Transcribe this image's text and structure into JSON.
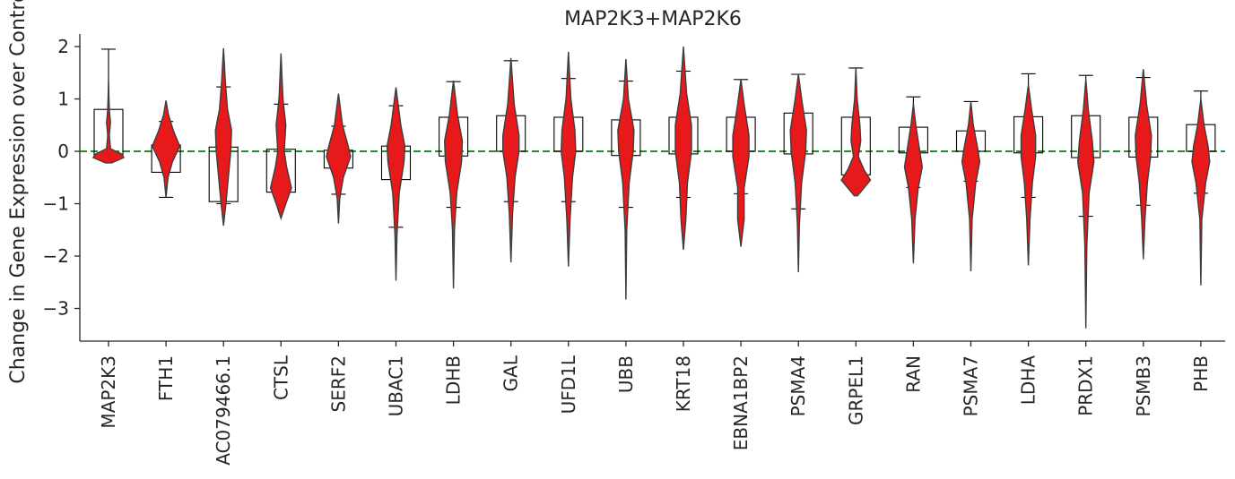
{
  "chart_data": {
    "type": "violin",
    "title": "MAP2K3+MAP2K6",
    "xlabel": "",
    "ylabel": "Change in Gene Expression over Control",
    "ylim": [
      -3.65,
      2.3
    ],
    "yticks": [
      2,
      1,
      0,
      -1,
      -2,
      -3
    ],
    "reference_line": {
      "y": 0,
      "style": "dashed",
      "color": "#008000"
    },
    "colors": {
      "violin": "#e8191b",
      "box": "#000000",
      "axis": "#262626"
    },
    "grid": false,
    "legend": "none",
    "categories": [
      "MAP2K3",
      "FTH1",
      "AC079466.1",
      "CTSL",
      "SERF2",
      "UBAC1",
      "LDHB",
      "GAL",
      "UFD1L",
      "UBB",
      "KRT18",
      "EBNA1BP2",
      "PSMA4",
      "GRPEL1",
      "RAN",
      "PSMA7",
      "LDHA",
      "PRDX1",
      "PSMB3",
      "PHB"
    ],
    "boxes": [
      {
        "q1": -0.07,
        "q3": 0.8,
        "lo": -0.1,
        "hi": 1.95
      },
      {
        "q1": -0.4,
        "q3": 0.12,
        "lo": -0.88,
        "hi": 0.57
      },
      {
        "q1": -0.96,
        "q3": 0.08,
        "lo": -1.0,
        "hi": 1.23
      },
      {
        "q1": -0.78,
        "q3": 0.04,
        "lo": -0.8,
        "hi": 0.9
      },
      {
        "q1": -0.32,
        "q3": 0.02,
        "lo": -0.82,
        "hi": 0.48
      },
      {
        "q1": -0.54,
        "q3": 0.1,
        "lo": -1.45,
        "hi": 0.87
      },
      {
        "q1": -0.09,
        "q3": 0.65,
        "lo": -1.07,
        "hi": 1.33
      },
      {
        "q1": 0.0,
        "q3": 0.68,
        "lo": -0.96,
        "hi": 1.73
      },
      {
        "q1": 0.0,
        "q3": 0.65,
        "lo": -0.96,
        "hi": 1.39
      },
      {
        "q1": -0.08,
        "q3": 0.6,
        "lo": -1.07,
        "hi": 1.34
      },
      {
        "q1": -0.05,
        "q3": 0.65,
        "lo": -0.88,
        "hi": 1.53
      },
      {
        "q1": 0.0,
        "q3": 0.65,
        "lo": -0.81,
        "hi": 1.37
      },
      {
        "q1": -0.05,
        "q3": 0.73,
        "lo": -1.1,
        "hi": 1.47
      },
      {
        "q1": -0.45,
        "q3": 0.65,
        "lo": -0.46,
        "hi": 1.59
      },
      {
        "q1": -0.03,
        "q3": 0.46,
        "lo": -0.69,
        "hi": 1.04
      },
      {
        "q1": 0.0,
        "q3": 0.39,
        "lo": -0.57,
        "hi": 0.95
      },
      {
        "q1": -0.03,
        "q3": 0.66,
        "lo": -0.88,
        "hi": 1.48
      },
      {
        "q1": -0.12,
        "q3": 0.68,
        "lo": -1.24,
        "hi": 1.45
      },
      {
        "q1": -0.11,
        "q3": 0.65,
        "lo": -1.03,
        "hi": 1.41
      },
      {
        "q1": 0.0,
        "q3": 0.51,
        "lo": -0.8,
        "hi": 1.15
      }
    ],
    "violins": [
      {
        "min": -0.22,
        "max": 1.38,
        "profile": [
          [
            -0.22,
            0.2
          ],
          [
            -0.12,
            0.95
          ],
          [
            -0.05,
            0.8
          ],
          [
            0.05,
            0.12
          ],
          [
            0.3,
            0.05
          ],
          [
            0.55,
            0.12
          ],
          [
            0.75,
            0.06
          ],
          [
            1.0,
            0.03
          ],
          [
            1.38,
            0
          ]
        ]
      },
      {
        "min": -0.88,
        "max": 0.97,
        "profile": [
          [
            -0.88,
            0
          ],
          [
            -0.5,
            0.12
          ],
          [
            -0.2,
            0.4
          ],
          [
            0.1,
            0.85
          ],
          [
            0.4,
            0.45
          ],
          [
            0.7,
            0.15
          ],
          [
            0.97,
            0
          ]
        ]
      },
      {
        "min": -1.42,
        "max": 1.97,
        "profile": [
          [
            -1.42,
            0
          ],
          [
            -1.0,
            0.15
          ],
          [
            -0.5,
            0.3
          ],
          [
            0.0,
            0.45
          ],
          [
            0.4,
            0.5
          ],
          [
            0.8,
            0.25
          ],
          [
            1.3,
            0.12
          ],
          [
            1.97,
            0
          ]
        ]
      },
      {
        "min": -1.28,
        "max": 1.87,
        "profile": [
          [
            -1.28,
            0
          ],
          [
            -1.0,
            0.3
          ],
          [
            -0.7,
            0.65
          ],
          [
            -0.3,
            0.35
          ],
          [
            0.0,
            0.2
          ],
          [
            0.5,
            0.3
          ],
          [
            1.0,
            0.12
          ],
          [
            1.87,
            0
          ]
        ]
      },
      {
        "min": -1.38,
        "max": 1.1,
        "profile": [
          [
            -1.38,
            0
          ],
          [
            -0.9,
            0.08
          ],
          [
            -0.5,
            0.3
          ],
          [
            -0.1,
            0.75
          ],
          [
            0.1,
            0.6
          ],
          [
            0.5,
            0.25
          ],
          [
            1.1,
            0
          ]
        ]
      },
      {
        "min": -2.47,
        "max": 1.22,
        "profile": [
          [
            -2.47,
            0
          ],
          [
            -1.6,
            0.06
          ],
          [
            -0.8,
            0.2
          ],
          [
            -0.2,
            0.5
          ],
          [
            0.1,
            0.55
          ],
          [
            0.5,
            0.3
          ],
          [
            1.22,
            0
          ]
        ]
      },
      {
        "min": -2.62,
        "max": 1.35,
        "profile": [
          [
            -2.62,
            0
          ],
          [
            -1.5,
            0.06
          ],
          [
            -0.8,
            0.2
          ],
          [
            -0.2,
            0.5
          ],
          [
            0.2,
            0.55
          ],
          [
            0.7,
            0.25
          ],
          [
            1.35,
            0
          ]
        ]
      },
      {
        "min": -2.12,
        "max": 1.78,
        "profile": [
          [
            -2.12,
            0
          ],
          [
            -1.2,
            0.1
          ],
          [
            -0.5,
            0.25
          ],
          [
            0.0,
            0.5
          ],
          [
            0.3,
            0.5
          ],
          [
            0.9,
            0.2
          ],
          [
            1.78,
            0
          ]
        ]
      },
      {
        "min": -2.2,
        "max": 1.9,
        "profile": [
          [
            -2.2,
            0
          ],
          [
            -1.3,
            0.1
          ],
          [
            -0.5,
            0.25
          ],
          [
            0.0,
            0.45
          ],
          [
            0.4,
            0.4
          ],
          [
            1.0,
            0.15
          ],
          [
            1.9,
            0
          ]
        ]
      },
      {
        "min": -2.83,
        "max": 1.76,
        "profile": [
          [
            -2.83,
            0
          ],
          [
            -1.5,
            0.05
          ],
          [
            -0.6,
            0.2
          ],
          [
            0.0,
            0.45
          ],
          [
            0.4,
            0.5
          ],
          [
            1.0,
            0.15
          ],
          [
            1.76,
            0
          ]
        ]
      },
      {
        "min": -1.88,
        "max": 2.0,
        "profile": [
          [
            -1.88,
            0
          ],
          [
            -1.3,
            0.15
          ],
          [
            -0.6,
            0.25
          ],
          [
            0.0,
            0.5
          ],
          [
            0.5,
            0.5
          ],
          [
            1.1,
            0.2
          ],
          [
            2.0,
            0
          ]
        ]
      },
      {
        "min": -1.82,
        "max": 1.38,
        "profile": [
          [
            -1.82,
            0
          ],
          [
            -1.3,
            0.2
          ],
          [
            -0.7,
            0.2
          ],
          [
            -0.1,
            0.5
          ],
          [
            0.3,
            0.5
          ],
          [
            0.9,
            0.2
          ],
          [
            1.38,
            0
          ]
        ]
      },
      {
        "min": -2.31,
        "max": 1.47,
        "profile": [
          [
            -2.31,
            0
          ],
          [
            -1.4,
            0.06
          ],
          [
            -0.6,
            0.2
          ],
          [
            0.0,
            0.45
          ],
          [
            0.4,
            0.5
          ],
          [
            1.0,
            0.2
          ],
          [
            1.47,
            0
          ]
        ]
      },
      {
        "min": -0.85,
        "max": 1.6,
        "profile": [
          [
            -0.85,
            0.1
          ],
          [
            -0.55,
            0.9
          ],
          [
            -0.35,
            0.5
          ],
          [
            -0.1,
            0.15
          ],
          [
            0.2,
            0.3
          ],
          [
            0.5,
            0.25
          ],
          [
            1.0,
            0.08
          ],
          [
            1.6,
            0
          ]
        ]
      },
      {
        "min": -2.14,
        "max": 0.9,
        "profile": [
          [
            -2.14,
            0
          ],
          [
            -1.3,
            0.1
          ],
          [
            -0.7,
            0.3
          ],
          [
            -0.3,
            0.55
          ],
          [
            0.0,
            0.4
          ],
          [
            0.5,
            0.15
          ],
          [
            0.9,
            0
          ]
        ]
      },
      {
        "min": -2.29,
        "max": 0.95,
        "profile": [
          [
            -2.29,
            0
          ],
          [
            -1.3,
            0.08
          ],
          [
            -0.6,
            0.3
          ],
          [
            -0.2,
            0.55
          ],
          [
            0.1,
            0.4
          ],
          [
            0.5,
            0.15
          ],
          [
            0.95,
            0
          ]
        ]
      },
      {
        "min": -2.18,
        "max": 1.27,
        "profile": [
          [
            -2.18,
            0
          ],
          [
            -1.3,
            0.1
          ],
          [
            -0.6,
            0.25
          ],
          [
            -0.1,
            0.45
          ],
          [
            0.3,
            0.45
          ],
          [
            0.8,
            0.2
          ],
          [
            1.27,
            0
          ]
        ]
      },
      {
        "min": -3.38,
        "max": 1.38,
        "profile": [
          [
            -3.38,
            0
          ],
          [
            -1.8,
            0.06
          ],
          [
            -0.8,
            0.2
          ],
          [
            -0.2,
            0.5
          ],
          [
            0.2,
            0.4
          ],
          [
            0.8,
            0.15
          ],
          [
            1.38,
            0
          ]
        ]
      },
      {
        "min": -2.06,
        "max": 1.57,
        "profile": [
          [
            -2.06,
            0
          ],
          [
            -1.3,
            0.1
          ],
          [
            -0.6,
            0.25
          ],
          [
            -0.1,
            0.45
          ],
          [
            0.3,
            0.5
          ],
          [
            0.9,
            0.2
          ],
          [
            1.57,
            0
          ]
        ]
      },
      {
        "min": -2.56,
        "max": 1.0,
        "profile": [
          [
            -2.56,
            0
          ],
          [
            -1.3,
            0.06
          ],
          [
            -0.6,
            0.3
          ],
          [
            -0.2,
            0.55
          ],
          [
            0.1,
            0.45
          ],
          [
            0.5,
            0.2
          ],
          [
            1.0,
            0
          ]
        ]
      }
    ]
  }
}
